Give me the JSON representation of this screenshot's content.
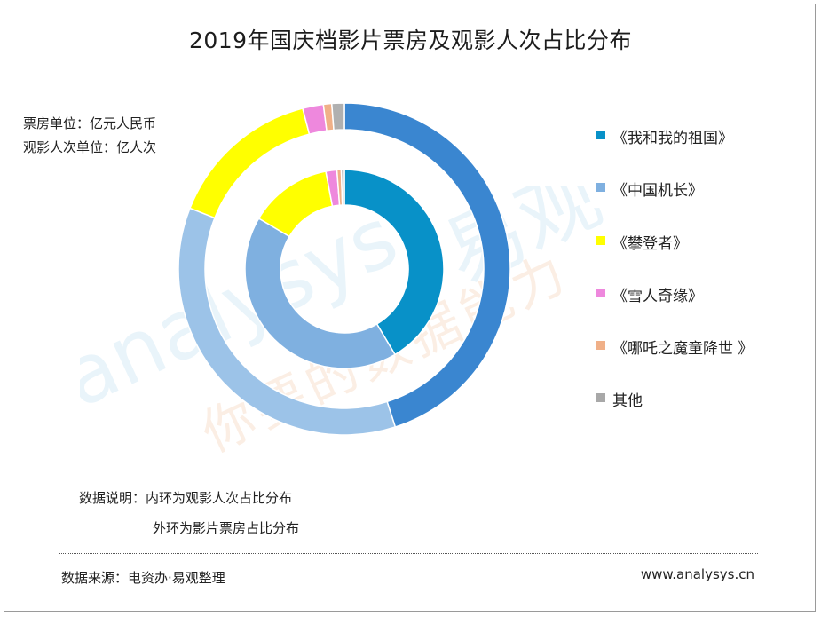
{
  "title": "2019年国庆档影片票房及观影人次占比分布",
  "units": {
    "line1": "票房单位：亿元人民币",
    "line2": "观影人次单位：亿人次"
  },
  "legend": [
    {
      "label": "《我和我的祖国》",
      "color": "#0891c8"
    },
    {
      "label": "《中国机长》",
      "color": "#7fb0e0"
    },
    {
      "label": "《攀登者》",
      "color": "#ffff00"
    },
    {
      "label": "《雪人奇缘》",
      "color": "#ee88dd"
    },
    {
      "label": "《哪吒之魔童降世 》",
      "color": "#f0b088"
    },
    {
      "label": "其他",
      "color": "#a8a8a8"
    }
  ],
  "note": {
    "line1": "数据说明：内环为观影人次占比分布",
    "line2": "外环为影片票房占比分布"
  },
  "source": "数据来源：电资办·易观整理",
  "site": "www.analysys.cn",
  "watermark": {
    "brand": "analysys",
    "brand_cn": "易观",
    "slogan": "你要的数据能力"
  },
  "chart_data": {
    "type": "pie",
    "variant": "double-donut",
    "categories": [
      "《我和我的祖国》",
      "《中国机长》",
      "《攀登者》",
      "《雪人奇缘》",
      "《哪吒之魔童降世 》",
      "其他"
    ],
    "series": [
      {
        "ring": "outer",
        "colors": [
          "#3a86d0",
          "#9cc3e8",
          "#ffff00",
          "#ee88dd",
          "#f0b088",
          "#b0b0b0"
        ],
        "values": [
          44.5,
          35.5,
          14.8,
          2.0,
          0.8,
          1.2
        ]
      },
      {
        "ring": "inner",
        "colors": [
          "#0891c8",
          "#7fb0e0",
          "#ffff00",
          "#ee88dd",
          "#f0b088",
          "#b0b0b0"
        ],
        "values": [
          41.5,
          42.0,
          13.5,
          1.8,
          0.7,
          0.5
        ]
      }
    ]
  }
}
